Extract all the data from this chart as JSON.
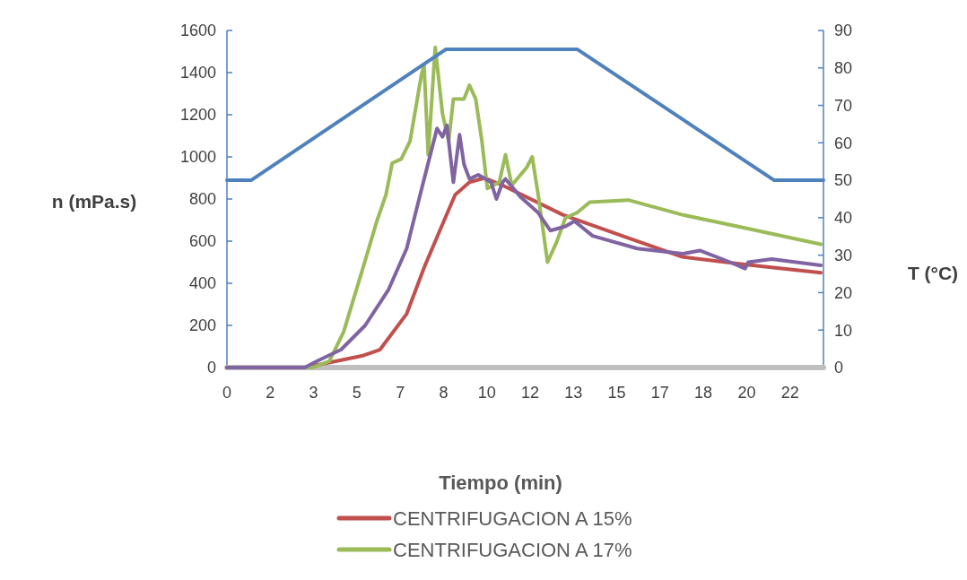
{
  "chart_data": {
    "type": "line",
    "xlabel": "Tiempo (min)",
    "ylabel": "n (mPa.s)",
    "y2label": "T (°C)",
    "xlim": [
      0,
      23
    ],
    "ylim": [
      0,
      1600
    ],
    "y2lim": [
      0,
      90
    ],
    "xticks": [
      0,
      {
        "value": 1.67,
        "label": "2"
      },
      {
        "value": 3.34,
        "label": "3"
      },
      {
        "value": 5.01,
        "label": "5"
      },
      {
        "value": 6.68,
        "label": "7"
      },
      {
        "value": 8.35,
        "label": "8"
      },
      {
        "value": 10.02,
        "label": "10"
      },
      {
        "value": 11.69,
        "label": "12"
      },
      {
        "value": 13.36,
        "label": "13"
      },
      {
        "value": 15.03,
        "label": "15"
      },
      {
        "value": 16.7,
        "label": "17"
      },
      {
        "value": 18.37,
        "label": "18"
      },
      {
        "value": 20.04,
        "label": "20"
      },
      {
        "value": 21.71,
        "label": "22"
      }
    ],
    "yticks": [
      0,
      200,
      400,
      600,
      800,
      1000,
      1200,
      1400,
      1600
    ],
    "y2ticks": [
      0,
      10,
      20,
      30,
      40,
      50,
      60,
      70,
      80,
      90
    ],
    "grid": false,
    "legend": "bottom",
    "marker": "none",
    "line_style": "solid",
    "series": [
      {
        "color": "#bfbfbf",
        "x": [
          0,
          23
        ],
        "values": [
          0,
          0
        ]
      },
      {
        "name": "CENTRIFUGACION A 15%",
        "color": "#c0504d",
        "x": [
          0,
          3,
          4.4,
          5.2,
          5.9,
          6.93,
          7.62,
          8.31,
          8.8,
          9.35,
          9.94,
          10.63,
          12.95,
          15.24,
          17.56,
          19.88,
          22.9
        ],
        "values": [
          0,
          0,
          35,
          55,
          85,
          255,
          480,
          680,
          820,
          880,
          900,
          865,
          725,
          625,
          525,
          490,
          450
        ]
      },
      {
        "name": "CENTRIFUGACION A 17%",
        "color": "#9bbb59",
        "x": [
          0,
          3.3,
          3.95,
          4.5,
          5.2,
          5.78,
          6.13,
          6.37,
          6.72,
          7.06,
          7.5,
          7.6,
          7.76,
          8.03,
          8.31,
          8.55,
          8.73,
          9.14,
          9.35,
          9.59,
          9.83,
          10.04,
          10.5,
          10.74,
          10.98,
          11.56,
          11.77,
          12.0,
          12.36,
          12.71,
          13.05,
          13.5,
          13.99,
          15.48,
          17.56,
          19.88,
          22.9
        ],
        "values": [
          0,
          0,
          30,
          170,
          455,
          695,
          820,
          970,
          990,
          1075,
          1390,
          1435,
          1010,
          1520,
          1205,
          1075,
          1275,
          1275,
          1340,
          1275,
          1075,
          850,
          880,
          1010,
          865,
          950,
          1000,
          820,
          500,
          595,
          710,
          735,
          785,
          795,
          725,
          665,
          585
        ]
      },
      {
        "color": "#8064a2",
        "x": [
          0,
          3,
          3.46,
          4.4,
          5.33,
          6.23,
          6.93,
          7.51,
          8.1,
          8.31,
          8.48,
          8.73,
          8.97,
          9.14,
          9.35,
          9.69,
          10.18,
          10.39,
          10.63,
          10.74,
          11.32,
          12.0,
          12.47,
          13.05,
          13.4,
          14.1,
          15.82,
          17.56,
          18.25,
          19.4,
          19.98,
          20.1,
          21.0,
          22.9
        ],
        "values": [
          0,
          0,
          30,
          85,
          200,
          370,
          565,
          850,
          1135,
          1095,
          1150,
          880,
          1105,
          965,
          895,
          915,
          880,
          800,
          880,
          895,
          810,
          735,
          650,
          670,
          695,
          625,
          565,
          540,
          555,
          500,
          470,
          500,
          515,
          485
        ]
      },
      {
        "color": "#4f81bd",
        "axis": "y2",
        "x": [
          0,
          0.93,
          8.45,
          13.5,
          21.1,
          23
        ],
        "values": [
          50,
          50,
          85,
          85,
          50,
          50
        ]
      }
    ]
  }
}
